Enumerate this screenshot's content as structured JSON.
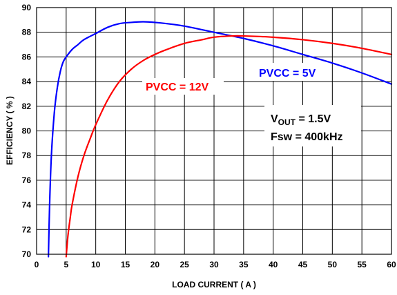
{
  "chart_data": {
    "type": "line",
    "xlabel": "LOAD CURRENT ( A )",
    "ylabel": "EFFICIENCY ( % )",
    "xlim": [
      0,
      60
    ],
    "ylim": [
      70,
      90
    ],
    "xticks": [
      0,
      5,
      10,
      15,
      20,
      25,
      30,
      35,
      40,
      45,
      50,
      55,
      60
    ],
    "yticks": [
      70,
      72,
      74,
      76,
      78,
      80,
      82,
      84,
      86,
      88,
      90
    ],
    "grid": true,
    "series": [
      {
        "name": "PVCC = 5V",
        "color": "#0000ff",
        "x": [
          2.0,
          2.2,
          2.5,
          3.0,
          3.5,
          4.0,
          4.5,
          5.0,
          6.0,
          7.0,
          8.0,
          10.0,
          12.0,
          14.0,
          16.0,
          18.0,
          20.0,
          22.0,
          25.0,
          30.0,
          35.0,
          40.0,
          45.0,
          50.0,
          55.0,
          60.0
        ],
        "y": [
          69.8,
          74.0,
          78.0,
          81.5,
          83.5,
          84.8,
          85.6,
          86.0,
          86.6,
          87.0,
          87.4,
          87.9,
          88.4,
          88.7,
          88.8,
          88.85,
          88.8,
          88.7,
          88.5,
          88.0,
          87.5,
          86.9,
          86.2,
          85.5,
          84.7,
          83.8
        ]
      },
      {
        "name": "PVCC = 12V",
        "color": "#ff0000",
        "x": [
          5.0,
          5.3,
          5.7,
          6.0,
          7.0,
          8.0,
          9.0,
          10.0,
          12.0,
          14.0,
          16.0,
          18.0,
          20.0,
          22.0,
          25.0,
          28.0,
          30.0,
          33.0,
          35.0,
          40.0,
          45.0,
          50.0,
          55.0,
          60.0
        ],
        "y": [
          69.8,
          71.5,
          73.0,
          74.0,
          76.3,
          78.0,
          79.3,
          80.5,
          82.5,
          84.0,
          85.0,
          85.7,
          86.2,
          86.6,
          87.1,
          87.4,
          87.6,
          87.7,
          87.7,
          87.6,
          87.4,
          87.1,
          86.7,
          86.2
        ]
      }
    ],
    "annotations": {
      "pvcc12": "PVCC = 12V",
      "pvcc5": "PVCC = 5V",
      "vout_main": "V",
      "vout_sub": "OUT",
      "vout_rest": " = 1.5V",
      "fsw": "Fsw = 400kHz"
    }
  }
}
